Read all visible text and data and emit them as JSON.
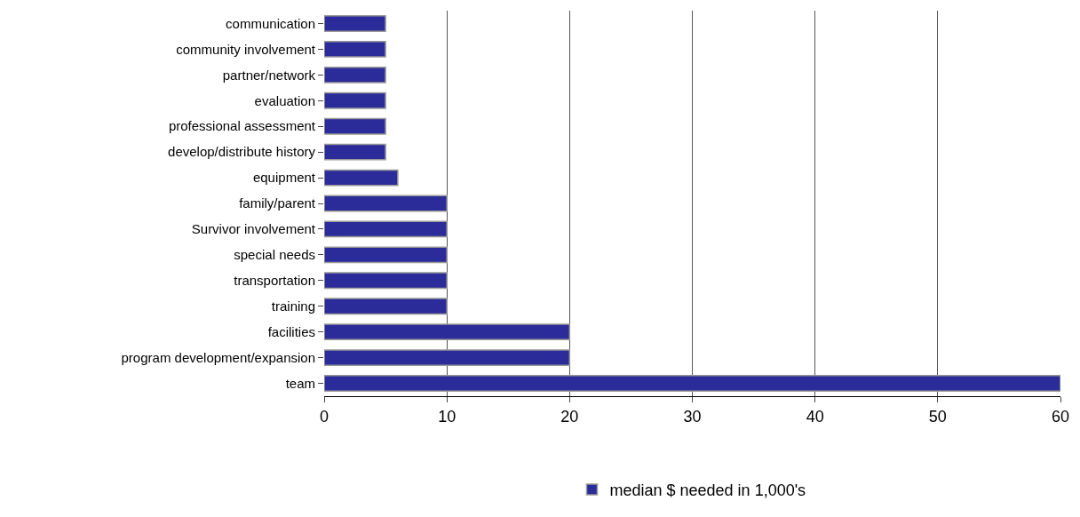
{
  "chart_data": {
    "type": "bar",
    "orientation": "horizontal",
    "categories": [
      "communication",
      "community involvement",
      "partner/network",
      "evaluation",
      "professional assessment",
      "develop/distribute history",
      "equipment",
      "family/parent",
      "Survivor involvement",
      "special needs",
      "transportation",
      "training",
      "facilities",
      "program development/expansion",
      "team"
    ],
    "series": [
      {
        "name": "median $ needed in 1,000's",
        "color": "#2b2b99",
        "values": [
          5,
          5,
          5,
          5,
          5,
          5,
          6,
          10,
          10,
          10,
          10,
          10,
          20,
          20,
          60
        ]
      }
    ],
    "xlim": [
      0,
      60
    ],
    "xticks": [
      0,
      10,
      20,
      30,
      40,
      50,
      60
    ],
    "grid": "x",
    "legend": "bottom"
  }
}
